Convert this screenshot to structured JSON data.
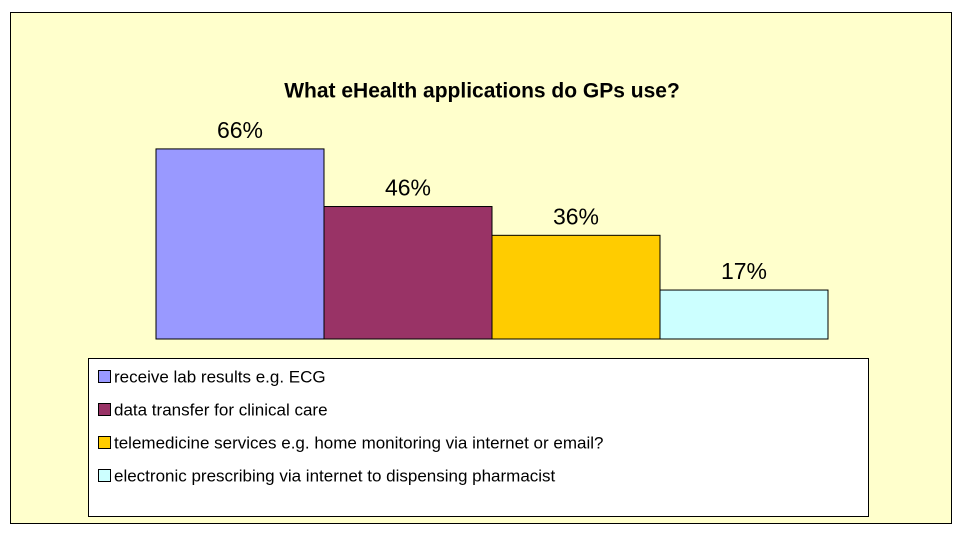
{
  "chart_data": {
    "type": "bar",
    "title": "What eHealth applications do GPs use?",
    "series": [
      {
        "name": "receive lab results e.g. ECG",
        "color": "#9999ff",
        "values": [
          66
        ],
        "value_labels": [
          "66%"
        ]
      },
      {
        "name": "data transfer for clinical care",
        "color": "#993366",
        "values": [
          46
        ],
        "value_labels": [
          "46%"
        ]
      },
      {
        "name": "telemedicine services e.g. home monitoring via internet or email?",
        "color": "#ffcc00",
        "values": [
          36
        ],
        "value_labels": [
          "36%"
        ]
      },
      {
        "name": "electronic prescribing via internet to dispensing pharmacist",
        "color": "#ccffff",
        "values": [
          17
        ],
        "value_labels": [
          "17%"
        ]
      }
    ],
    "legend": "bottom"
  }
}
